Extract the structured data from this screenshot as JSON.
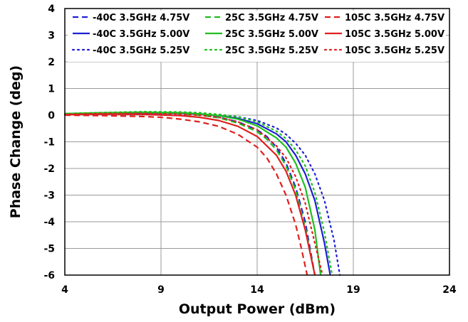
{
  "chart_data": {
    "type": "line",
    "title": "",
    "xlabel": "Output Power (dBm)",
    "ylabel": "Phase Change (deg)",
    "xlim": [
      4,
      24
    ],
    "ylim": [
      -6,
      4
    ],
    "xticks": [
      4,
      9,
      14,
      19,
      24
    ],
    "yticks": [
      4,
      3,
      2,
      1,
      0,
      -1,
      -2,
      -3,
      -4,
      -5,
      -6
    ],
    "grid": true,
    "legend_position": "top",
    "series": [
      {
        "name": "-40C 3.5GHz 4.75V",
        "color": "#1f1fd6",
        "dash": "dashed",
        "x": [
          4,
          6,
          8,
          10,
          11,
          12,
          13,
          14,
          14.5,
          15,
          15.5,
          16,
          16.5,
          17
        ],
        "y": [
          0.05,
          0.07,
          0.08,
          0.05,
          0.0,
          -0.08,
          -0.25,
          -0.55,
          -0.8,
          -1.2,
          -1.8,
          -2.7,
          -4.0,
          -6.0
        ]
      },
      {
        "name": "-40C 3.5GHz 5.00V",
        "color": "#1f1fd6",
        "dash": "solid",
        "x": [
          4,
          6,
          8,
          10,
          11,
          12,
          13,
          14,
          15,
          15.5,
          16,
          16.5,
          17,
          17.5,
          17.8
        ],
        "y": [
          0.05,
          0.07,
          0.08,
          0.07,
          0.04,
          -0.02,
          -0.12,
          -0.32,
          -0.7,
          -1.0,
          -1.5,
          -2.2,
          -3.2,
          -4.8,
          -6.0
        ]
      },
      {
        "name": "-40C 3.5GHz 5.25V",
        "color": "#1f1fd6",
        "dash": "dotted",
        "x": [
          4,
          6,
          8,
          10,
          11,
          12,
          13,
          14,
          15,
          15.5,
          16,
          16.5,
          17,
          17.5,
          18,
          18.3
        ],
        "y": [
          0.05,
          0.08,
          0.1,
          0.08,
          0.06,
          0.02,
          -0.06,
          -0.2,
          -0.48,
          -0.72,
          -1.05,
          -1.5,
          -2.2,
          -3.2,
          -4.7,
          -6.0
        ]
      },
      {
        "name": "25C 3.5GHz 4.75V",
        "color": "#1fbf1f",
        "dash": "dashed",
        "x": [
          4,
          6,
          8,
          10,
          11,
          12,
          13,
          14,
          14.5,
          15,
          15.5,
          16,
          16.5,
          17
        ],
        "y": [
          0.05,
          0.08,
          0.1,
          0.06,
          0.0,
          -0.1,
          -0.3,
          -0.62,
          -0.9,
          -1.3,
          -1.9,
          -2.8,
          -4.2,
          -6.0
        ]
      },
      {
        "name": "25C 3.5GHz 5.00V",
        "color": "#1fbf1f",
        "dash": "solid",
        "x": [
          4,
          6,
          8,
          10,
          11,
          12,
          13,
          14,
          15,
          15.5,
          16,
          16.5,
          17,
          17.3
        ],
        "y": [
          0.06,
          0.09,
          0.11,
          0.09,
          0.05,
          -0.02,
          -0.15,
          -0.4,
          -0.85,
          -1.2,
          -1.8,
          -2.7,
          -4.3,
          -6.0
        ]
      },
      {
        "name": "25C 3.5GHz 5.25V",
        "color": "#1fbf1f",
        "dash": "dotted",
        "x": [
          4,
          6,
          8,
          10,
          11,
          12,
          13,
          14,
          15,
          15.5,
          16,
          16.5,
          17,
          17.5,
          17.9
        ],
        "y": [
          0.06,
          0.1,
          0.13,
          0.12,
          0.09,
          0.03,
          -0.06,
          -0.25,
          -0.6,
          -0.88,
          -1.3,
          -1.9,
          -2.9,
          -4.4,
          -6.0
        ]
      },
      {
        "name": "105C 3.5GHz 4.75V",
        "color": "#e01f1f",
        "dash": "dashed",
        "x": [
          4,
          6,
          8,
          9,
          10,
          11,
          12,
          13,
          14,
          14.5,
          15,
          15.5,
          16,
          16.3,
          16.6
        ],
        "y": [
          0.0,
          -0.02,
          -0.05,
          -0.08,
          -0.15,
          -0.25,
          -0.42,
          -0.72,
          -1.2,
          -1.6,
          -2.2,
          -3.0,
          -4.1,
          -5.0,
          -6.0
        ]
      },
      {
        "name": "105C 3.5GHz 5.00V",
        "color": "#e01f1f",
        "dash": "solid",
        "x": [
          4,
          6,
          8,
          10,
          11,
          12,
          13,
          14,
          15,
          15.5,
          16,
          16.5,
          17
        ],
        "y": [
          0.02,
          0.04,
          0.03,
          -0.02,
          -0.08,
          -0.2,
          -0.42,
          -0.8,
          -1.5,
          -2.1,
          -3.0,
          -4.3,
          -6.0
        ]
      },
      {
        "name": "105C 3.5GHz 5.25V",
        "color": "#e01f1f",
        "dash": "dotted",
        "x": [
          4,
          6,
          8,
          10,
          11,
          12,
          13,
          14,
          15,
          15.5,
          16,
          16.5,
          17,
          17.4
        ],
        "y": [
          0.03,
          0.06,
          0.07,
          0.04,
          0.0,
          -0.08,
          -0.25,
          -0.55,
          -1.15,
          -1.6,
          -2.3,
          -3.3,
          -4.8,
          -6.0
        ]
      }
    ]
  }
}
